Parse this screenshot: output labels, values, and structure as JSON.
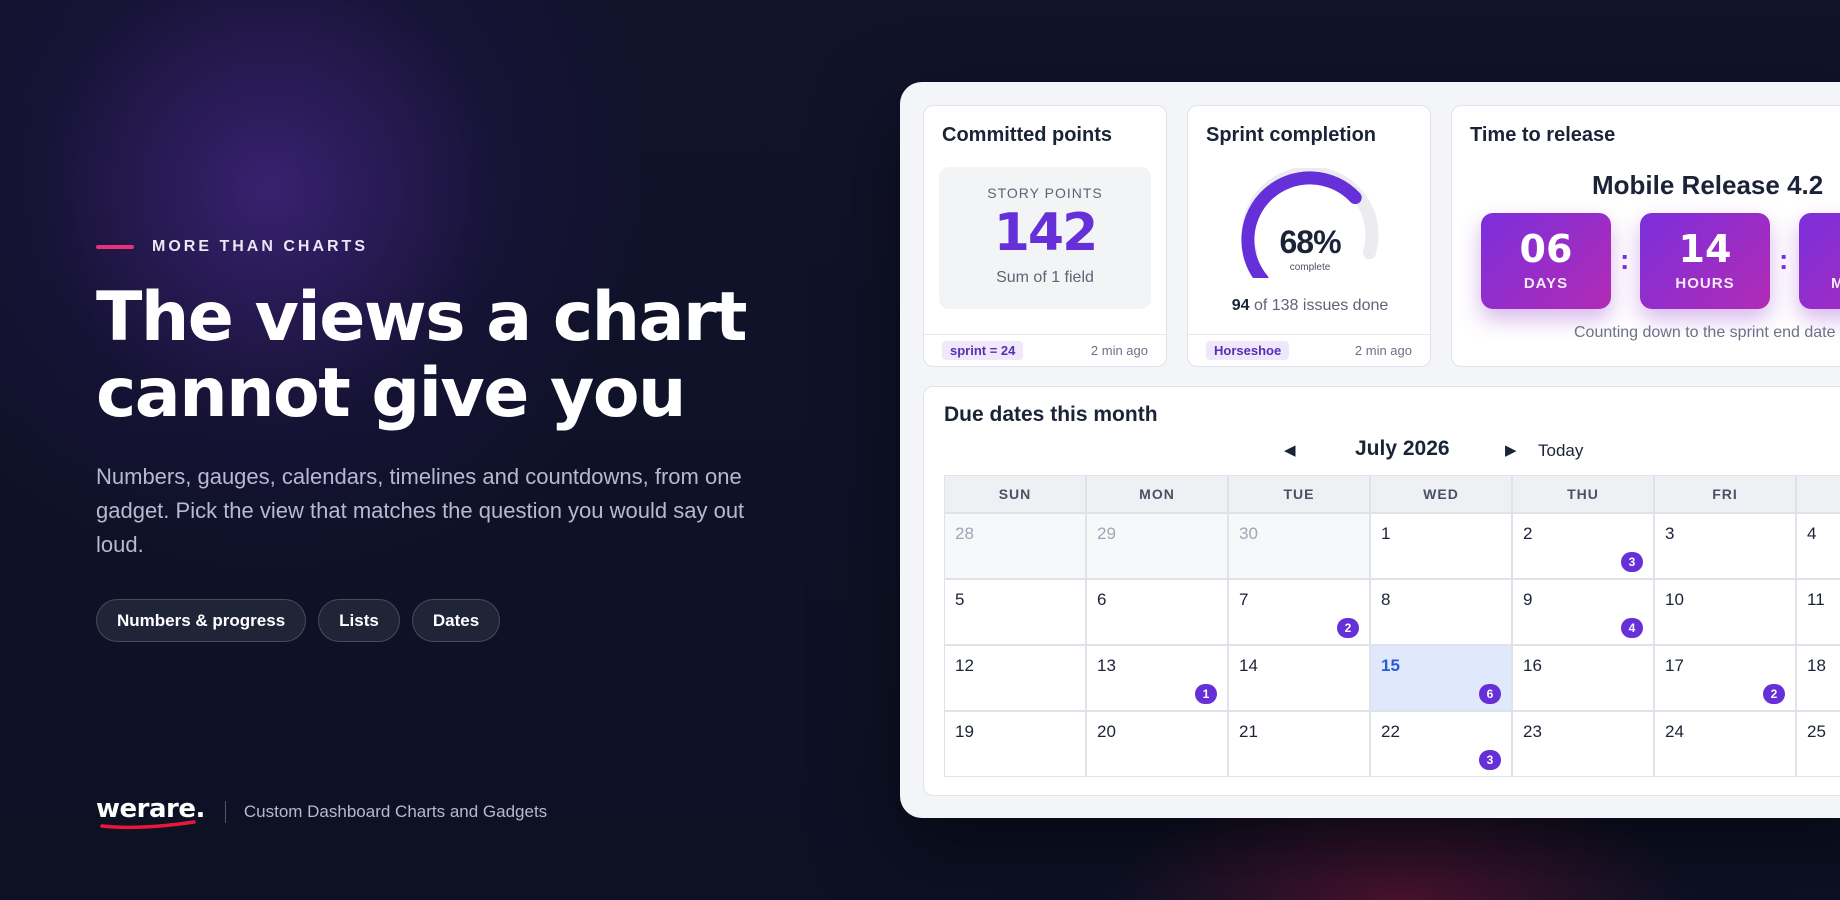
{
  "hero": {
    "eyebrow": "MORE THAN CHARTS",
    "headline_line1": "The views a chart",
    "headline_line2": "cannot give you",
    "subtitle": "Numbers, gauges, calendars, timelines and countdowns, from one gadget. Pick the view that matches the question you would say out loud.",
    "chips": [
      "Numbers & progress",
      "Lists",
      "Dates"
    ]
  },
  "brand": {
    "logo": "werare.",
    "tagline": "Custom Dashboard Charts and Gadgets"
  },
  "colors": {
    "accent_pink": "#e8317d",
    "purple": "#6530d8",
    "countdown_gradient_start": "#7b2fdc",
    "countdown_gradient_end": "#b22bb4",
    "today_highlight": "#dfe9fb"
  },
  "committed": {
    "title": "Committed points",
    "label": "STORY POINTS",
    "value": "142",
    "sub": "Sum of 1 field",
    "tag": "sprint = 24",
    "ago": "2 min ago"
  },
  "completion": {
    "title": "Sprint completion",
    "percent": 68,
    "percent_label": "68%",
    "gauge_sub": "complete",
    "done": "94",
    "issues_text": "of 138 issues done",
    "tag": "Horseshoe",
    "ago": "2 min ago"
  },
  "release": {
    "title": "Time to release",
    "name": "Mobile Release 4.2",
    "days": "06",
    "days_label": "DAYS",
    "hours": "14",
    "hours_label": "HOURS",
    "third_label": "M",
    "note": "Counting down to the sprint end date"
  },
  "calendar": {
    "title": "Due dates this month",
    "prev_icon": "◀",
    "month": "July 2026",
    "next_icon": "▶",
    "today_label": "Today",
    "days_of_week": [
      "SUN",
      "MON",
      "TUE",
      "WED",
      "THU",
      "FRI",
      ""
    ],
    "weeks": [
      [
        {
          "d": "28",
          "out": true
        },
        {
          "d": "29",
          "out": true
        },
        {
          "d": "30",
          "out": true
        },
        {
          "d": "1"
        },
        {
          "d": "2",
          "badge": "3"
        },
        {
          "d": "3"
        },
        {
          "d": "4"
        }
      ],
      [
        {
          "d": "5"
        },
        {
          "d": "6"
        },
        {
          "d": "7",
          "badge": "2"
        },
        {
          "d": "8"
        },
        {
          "d": "9",
          "badge": "4"
        },
        {
          "d": "10"
        },
        {
          "d": "11"
        }
      ],
      [
        {
          "d": "12"
        },
        {
          "d": "13",
          "badge": "1"
        },
        {
          "d": "14"
        },
        {
          "d": "15",
          "badge": "6",
          "today": true
        },
        {
          "d": "16"
        },
        {
          "d": "17",
          "badge": "2"
        },
        {
          "d": "18"
        }
      ],
      [
        {
          "d": "19"
        },
        {
          "d": "20"
        },
        {
          "d": "21"
        },
        {
          "d": "22",
          "badge": "3"
        },
        {
          "d": "23"
        },
        {
          "d": "24"
        },
        {
          "d": "25"
        }
      ]
    ]
  }
}
